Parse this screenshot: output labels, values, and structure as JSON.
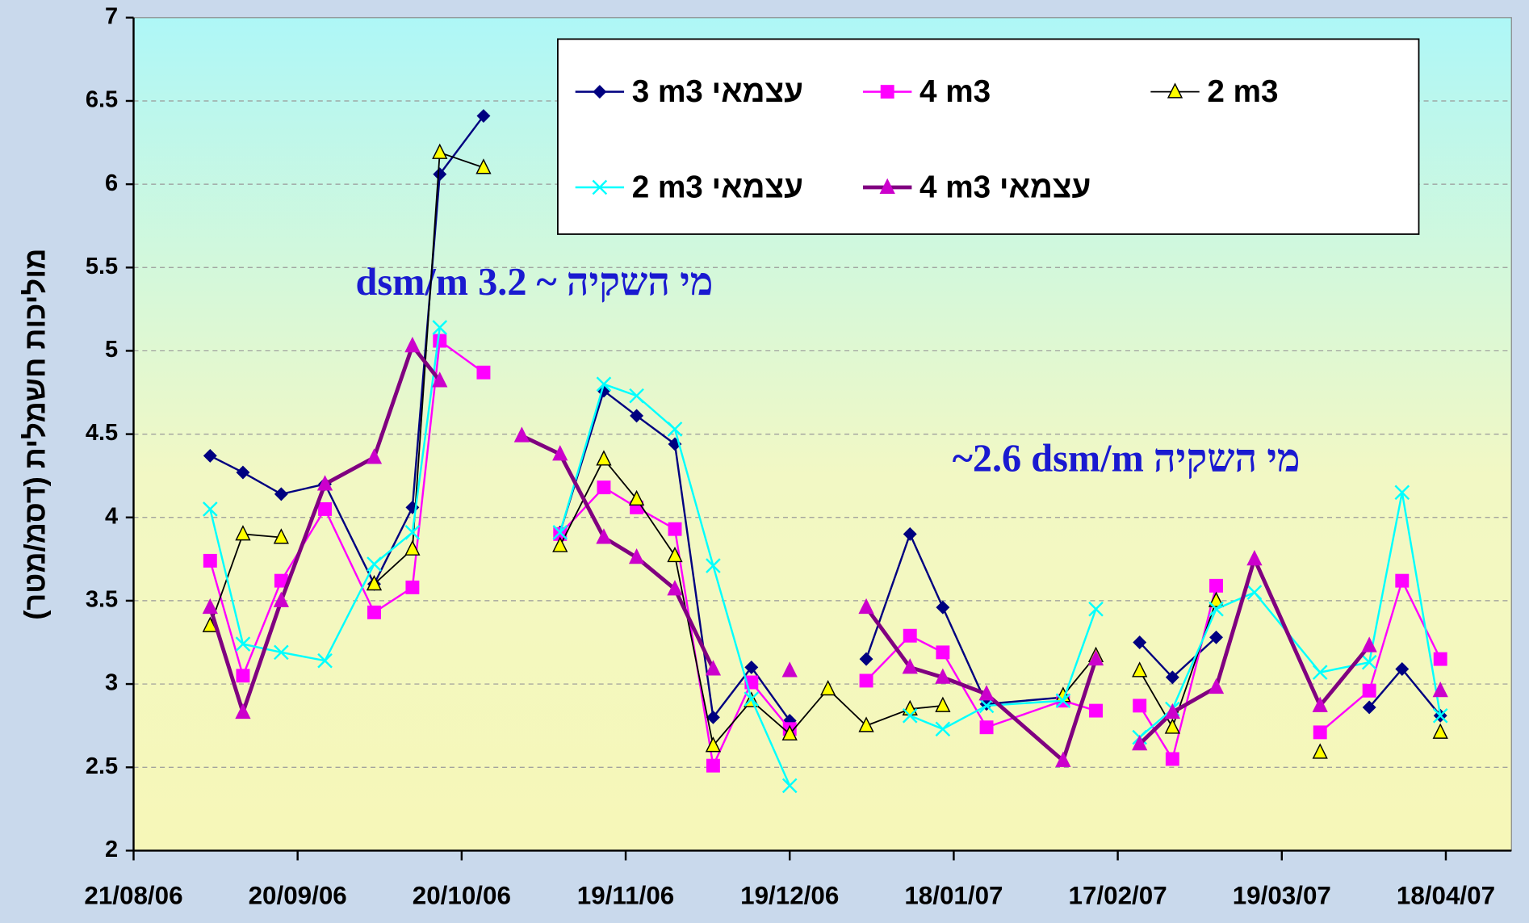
{
  "chart_data": {
    "type": "line",
    "y_label": "מוליכות חשמלית (דסמ/מטר)",
    "annotations": [
      "dsm/m 3.2 ~ מי השקיה",
      "~2.6 dsm/m  מי השקיה"
    ],
    "x": [
      "04/09/06",
      "10/09/06",
      "17/09/06",
      "25/09/06",
      "04/10/06",
      "11/10/06",
      "16/10/06",
      "24/10/06",
      "31/10/06",
      "07/11/06",
      "15/11/06",
      "21/11/06",
      "28/11/06",
      "05/12/06",
      "12/12/06",
      "19/12/06",
      "26/12/06",
      "02/01/07",
      "10/01/07",
      "16/01/07",
      "24/01/07",
      "07/02/07",
      "13/02/07",
      "17/02/07",
      "21/02/07",
      "27/02/07",
      "07/03/07",
      "14/03/07",
      "26/03/07",
      "04/04/07",
      "10/04/07",
      "17/04/07"
    ],
    "xlim": [
      "21/08/06",
      "30/04/07"
    ],
    "xticks": [
      "21/08/06",
      "20/09/06",
      "20/10/06",
      "19/11/06",
      "19/12/06",
      "18/01/07",
      "17/02/07",
      "19/03/07",
      "18/04/07"
    ],
    "ylim": [
      2,
      7
    ],
    "yticks": [
      2,
      2.5,
      3,
      3.5,
      4,
      4.5,
      5,
      5.5,
      6,
      6.5,
      7
    ],
    "grid": true,
    "series": [
      {
        "name": "3 m3 עצמאי",
        "color": "#000080",
        "marker": "diamond",
        "line_width": 2,
        "values": [
          4.37,
          4.27,
          4.14,
          4.2,
          3.6,
          4.06,
          6.06,
          6.41,
          null,
          3.91,
          4.76,
          4.61,
          4.44,
          2.8,
          3.1,
          2.78,
          null,
          3.15,
          3.9,
          3.46,
          2.88,
          2.92,
          null,
          null,
          3.25,
          3.04,
          3.28,
          null,
          null,
          2.86,
          3.09,
          2.81
        ]
      },
      {
        "name": "4 m3",
        "color": "#ff00ff",
        "marker": "square",
        "line_width": 2,
        "values": [
          3.74,
          3.05,
          3.62,
          4.05,
          3.43,
          3.58,
          5.06,
          4.87,
          null,
          3.9,
          4.18,
          4.06,
          3.93,
          2.51,
          3.01,
          2.73,
          null,
          3.02,
          3.29,
          3.19,
          2.74,
          2.9,
          2.84,
          null,
          2.87,
          2.55,
          3.59,
          null,
          2.71,
          2.96,
          3.62,
          3.15
        ]
      },
      {
        "name": "2 m3",
        "color": "#000000",
        "marker_fill": "#ffff00",
        "marker": "triangle",
        "line_width": 1.5,
        "values": [
          3.35,
          3.9,
          3.88,
          null,
          3.6,
          3.81,
          6.19,
          6.1,
          null,
          3.83,
          4.35,
          4.11,
          3.77,
          2.63,
          2.9,
          2.7,
          2.97,
          2.75,
          2.85,
          2.87,
          null,
          2.93,
          3.17,
          null,
          3.08,
          2.74,
          3.5,
          null,
          2.59,
          null,
          null,
          2.71
        ]
      },
      {
        "name": "2 m3 עצמאי",
        "color": "#00ffff",
        "marker": "x",
        "line_width": 2,
        "values": [
          4.05,
          3.24,
          3.19,
          3.14,
          3.72,
          3.91,
          5.14,
          null,
          null,
          3.91,
          4.8,
          4.73,
          4.53,
          3.71,
          2.91,
          2.39,
          null,
          null,
          2.81,
          2.73,
          2.87,
          2.9,
          3.45,
          null,
          2.68,
          2.85,
          3.45,
          3.55,
          3.07,
          3.13,
          4.15,
          2.81
        ]
      },
      {
        "name": "4 m3 עצמאי",
        "color": "#800080",
        "marker_fill": "#cc00cc",
        "marker": "triangle",
        "line_width": 4,
        "values": [
          3.46,
          2.83,
          3.5,
          4.2,
          4.36,
          5.03,
          4.82,
          null,
          4.49,
          4.38,
          3.88,
          3.76,
          3.57,
          3.09,
          null,
          3.08,
          null,
          3.46,
          3.1,
          3.04,
          2.94,
          2.54,
          3.15,
          null,
          2.64,
          2.83,
          2.98,
          3.75,
          2.87,
          3.23,
          null,
          2.96
        ]
      }
    ]
  }
}
